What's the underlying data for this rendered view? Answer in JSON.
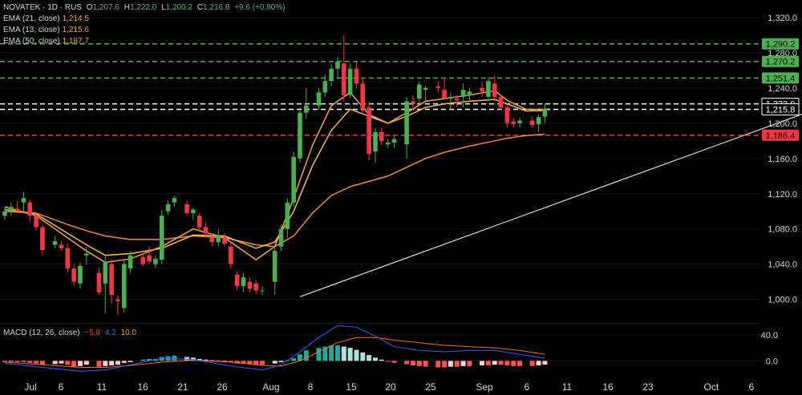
{
  "header": {
    "symbol": "NOVATEK · 1D · RUS",
    "o_label": "O",
    "o_value": "1,207.6",
    "h_label": "H",
    "h_value": "1,222.0",
    "l_label": "L",
    "l_value": "1,200.2",
    "c_label": "C",
    "c_value": "1,216.8",
    "change": "+9.6 (+0.80%)"
  },
  "indicators": [
    {
      "label": "EMA (21, close)",
      "value": "1,214.5",
      "color": "#f7b955"
    },
    {
      "label": "EMA (13, close)",
      "value": "1,215.6",
      "color": "#f5a04a"
    },
    {
      "label": "EMA (50, close)",
      "value": "1,187.7",
      "color": "#f08a3c"
    }
  ],
  "macd": {
    "label": "MACD (12, 26, close)",
    "hist": "−5.8",
    "macd": "4.2",
    "signal": "10.0"
  },
  "colors": {
    "up": "#4caf50",
    "down": "#f23645",
    "ema21": "#f7b955",
    "ema13": "#f5a04a",
    "ema50": "#f08a3c",
    "macd_line": "#2962ff",
    "signal_line": "#ff6d00",
    "trend": "#ffffff"
  },
  "chart_data": {
    "type": "candlestick",
    "y_axis_ticks": [
      "1,000.0",
      "1,040.0",
      "1,080.0",
      "1,120.0",
      "1,160.0",
      "1,200.0",
      "1,240.0",
      "1,280.0",
      "1,320.0"
    ],
    "ylim": [
      976,
      1340
    ],
    "x_axis_ticks": [
      "Jul",
      "6",
      "11",
      "16",
      "21",
      "26",
      "Aug",
      "8",
      "15",
      "20",
      "25",
      "Sep",
      "6",
      "11",
      "16",
      "23",
      "Oct",
      "6"
    ],
    "horizontal_levels": [
      {
        "value": 1290.2,
        "label": "1,290.2",
        "style": "dashed",
        "color": "#4caf50"
      },
      {
        "value": 1270.2,
        "label": "1,270.2",
        "style": "dashed",
        "color": "#4caf50"
      },
      {
        "value": 1251.4,
        "label": "1,251.4",
        "style": "dashed",
        "color": "#4caf50"
      },
      {
        "value": 1222.0,
        "label": "1,222.0",
        "style": "dashed",
        "color": "#ffffff"
      },
      {
        "value": 1215.8,
        "label": "1,215.8",
        "style": "dashed",
        "color": "#ffffff"
      },
      {
        "value": 1186.4,
        "label": "1,186.4",
        "style": "dashed",
        "color": "#f23645"
      }
    ],
    "trendline": {
      "from": {
        "x": 47,
        "y": 1003
      },
      "to": {
        "x": 150,
        "y": 1270
      }
    },
    "candles": [
      {
        "x": 0,
        "o": 1095,
        "h": 1105,
        "l": 1090,
        "c": 1100
      },
      {
        "x": 1,
        "o": 1100,
        "h": 1110,
        "l": 1095,
        "c": 1105
      },
      {
        "x": 2,
        "o": 1103,
        "h": 1112,
        "l": 1098,
        "c": 1100
      },
      {
        "x": 3,
        "o": 1110,
        "h": 1122,
        "l": 1100,
        "c": 1115
      },
      {
        "x": 4,
        "o": 1110,
        "h": 1113,
        "l": 1088,
        "c": 1095
      },
      {
        "x": 5,
        "o": 1095,
        "h": 1100,
        "l": 1078,
        "c": 1082
      },
      {
        "x": 6,
        "o": 1082,
        "h": 1085,
        "l": 1050,
        "c": 1056
      },
      {
        "x": 8,
        "o": 1062,
        "h": 1072,
        "l": 1058,
        "c": 1066
      },
      {
        "x": 9,
        "o": 1062,
        "h": 1066,
        "l": 1055,
        "c": 1058
      },
      {
        "x": 10,
        "o": 1058,
        "h": 1063,
        "l": 1030,
        "c": 1035
      },
      {
        "x": 11,
        "o": 1035,
        "h": 1040,
        "l": 1015,
        "c": 1020
      },
      {
        "x": 12,
        "o": 1018,
        "h": 1042,
        "l": 1012,
        "c": 1038
      },
      {
        "x": 13,
        "o": 1050,
        "h": 1060,
        "l": 1040,
        "c": 1052
      },
      {
        "x": 15,
        "o": 1030,
        "h": 1036,
        "l": 1005,
        "c": 1008
      },
      {
        "x": 16,
        "o": 1018,
        "h": 1050,
        "l": 984,
        "c": 1042
      },
      {
        "x": 17,
        "o": 1040,
        "h": 1046,
        "l": 995,
        "c": 1005
      },
      {
        "x": 18,
        "o": 1000,
        "h": 1005,
        "l": 982,
        "c": 998
      },
      {
        "x": 19,
        "o": 990,
        "h": 1045,
        "l": 985,
        "c": 1040
      },
      {
        "x": 20,
        "o": 1035,
        "h": 1055,
        "l": 1030,
        "c": 1050
      },
      {
        "x": 22,
        "o": 1048,
        "h": 1052,
        "l": 1038,
        "c": 1040
      },
      {
        "x": 23,
        "o": 1050,
        "h": 1060,
        "l": 1040,
        "c": 1043
      },
      {
        "x": 24,
        "o": 1040,
        "h": 1050,
        "l": 1035,
        "c": 1046
      },
      {
        "x": 25,
        "o": 1045,
        "h": 1102,
        "l": 1040,
        "c": 1095
      },
      {
        "x": 26,
        "o": 1100,
        "h": 1112,
        "l": 1096,
        "c": 1108
      },
      {
        "x": 27,
        "o": 1110,
        "h": 1117,
        "l": 1105,
        "c": 1115
      },
      {
        "x": 29,
        "o": 1108,
        "h": 1112,
        "l": 1095,
        "c": 1098
      },
      {
        "x": 30,
        "o": 1098,
        "h": 1104,
        "l": 1090,
        "c": 1102
      },
      {
        "x": 31,
        "o": 1095,
        "h": 1098,
        "l": 1078,
        "c": 1082
      },
      {
        "x": 32,
        "o": 1082,
        "h": 1088,
        "l": 1070,
        "c": 1075
      },
      {
        "x": 33,
        "o": 1070,
        "h": 1075,
        "l": 1060,
        "c": 1065
      },
      {
        "x": 34,
        "o": 1065,
        "h": 1080,
        "l": 1060,
        "c": 1072
      },
      {
        "x": 35,
        "o": 1070,
        "h": 1075,
        "l": 1060,
        "c": 1063
      },
      {
        "x": 36,
        "o": 1060,
        "h": 1065,
        "l": 1035,
        "c": 1040
      },
      {
        "x": 37,
        "o": 1028,
        "h": 1032,
        "l": 1010,
        "c": 1015
      },
      {
        "x": 38,
        "o": 1015,
        "h": 1030,
        "l": 1008,
        "c": 1025
      },
      {
        "x": 39,
        "o": 1020,
        "h": 1025,
        "l": 1008,
        "c": 1012
      },
      {
        "x": 40,
        "o": 1018,
        "h": 1022,
        "l": 1006,
        "c": 1010
      },
      {
        "x": 41,
        "o": 1010,
        "h": 1015,
        "l": 1005,
        "c": 1010
      },
      {
        "x": 43,
        "o": 1020,
        "h": 1060,
        "l": 1005,
        "c": 1055
      },
      {
        "x": 44,
        "o": 1060,
        "h": 1085,
        "l": 1055,
        "c": 1080
      },
      {
        "x": 45,
        "o": 1080,
        "h": 1115,
        "l": 1070,
        "c": 1110
      },
      {
        "x": 46,
        "o": 1110,
        "h": 1168,
        "l": 1105,
        "c": 1162
      },
      {
        "x": 47,
        "o": 1160,
        "h": 1218,
        "l": 1155,
        "c": 1212
      },
      {
        "x": 48,
        "o": 1212,
        "h": 1240,
        "l": 1205,
        "c": 1220
      },
      {
        "x": 50,
        "o": 1220,
        "h": 1240,
        "l": 1215,
        "c": 1235
      },
      {
        "x": 51,
        "o": 1235,
        "h": 1255,
        "l": 1230,
        "c": 1248
      },
      {
        "x": 52,
        "o": 1248,
        "h": 1268,
        "l": 1242,
        "c": 1262
      },
      {
        "x": 53,
        "o": 1262,
        "h": 1275,
        "l": 1250,
        "c": 1270
      },
      {
        "x": 54,
        "o": 1268,
        "h": 1300,
        "l": 1225,
        "c": 1232
      },
      {
        "x": 55,
        "o": 1232,
        "h": 1268,
        "l": 1228,
        "c": 1262
      },
      {
        "x": 56,
        "o": 1262,
        "h": 1270,
        "l": 1240,
        "c": 1245
      },
      {
        "x": 57,
        "o": 1245,
        "h": 1252,
        "l": 1210,
        "c": 1216
      },
      {
        "x": 58,
        "o": 1218,
        "h": 1225,
        "l": 1158,
        "c": 1165
      },
      {
        "x": 59,
        "o": 1168,
        "h": 1195,
        "l": 1155,
        "c": 1190
      },
      {
        "x": 60,
        "o": 1190,
        "h": 1195,
        "l": 1175,
        "c": 1180
      },
      {
        "x": 61,
        "o": 1176,
        "h": 1182,
        "l": 1172,
        "c": 1178
      },
      {
        "x": 62,
        "o": 1178,
        "h": 1186,
        "l": 1172,
        "c": 1182
      },
      {
        "x": 64,
        "o": 1176,
        "h": 1230,
        "l": 1160,
        "c": 1225
      },
      {
        "x": 65,
        "o": 1225,
        "h": 1232,
        "l": 1215,
        "c": 1222
      },
      {
        "x": 66,
        "o": 1228,
        "h": 1248,
        "l": 1220,
        "c": 1244
      },
      {
        "x": 67,
        "o": 1238,
        "h": 1242,
        "l": 1225,
        "c": 1240
      },
      {
        "x": 69,
        "o": 1242,
        "h": 1248,
        "l": 1234,
        "c": 1240
      },
      {
        "x": 70,
        "o": 1238,
        "h": 1252,
        "l": 1228,
        "c": 1228
      },
      {
        "x": 71,
        "o": 1228,
        "h": 1235,
        "l": 1215,
        "c": 1230
      },
      {
        "x": 72,
        "o": 1228,
        "h": 1232,
        "l": 1218,
        "c": 1226
      },
      {
        "x": 73,
        "o": 1230,
        "h": 1245,
        "l": 1218,
        "c": 1238
      },
      {
        "x": 74,
        "o": 1232,
        "h": 1240,
        "l": 1225,
        "c": 1236
      },
      {
        "x": 76,
        "o": 1240,
        "h": 1248,
        "l": 1230,
        "c": 1236
      },
      {
        "x": 77,
        "o": 1230,
        "h": 1252,
        "l": 1228,
        "c": 1248
      },
      {
        "x": 78,
        "o": 1245,
        "h": 1255,
        "l": 1225,
        "c": 1230
      },
      {
        "x": 79,
        "o": 1230,
        "h": 1233,
        "l": 1215,
        "c": 1218
      },
      {
        "x": 80,
        "o": 1218,
        "h": 1222,
        "l": 1195,
        "c": 1200
      },
      {
        "x": 81,
        "o": 1202,
        "h": 1206,
        "l": 1195,
        "c": 1199
      },
      {
        "x": 82,
        "o": 1200,
        "h": 1206,
        "l": 1195,
        "c": 1203
      },
      {
        "x": 84,
        "o": 1203,
        "h": 1208,
        "l": 1195,
        "c": 1198
      },
      {
        "x": 85,
        "o": 1199,
        "h": 1210,
        "l": 1190,
        "c": 1207
      },
      {
        "x": 86,
        "o": 1207.6,
        "h": 1222,
        "l": 1200.2,
        "c": 1216.8
      }
    ],
    "ema21": [
      [
        0,
        1102
      ],
      [
        5,
        1097
      ],
      [
        10,
        1075
      ],
      [
        13,
        1062
      ],
      [
        16,
        1050
      ],
      [
        20,
        1052
      ],
      [
        25,
        1058
      ],
      [
        30,
        1073
      ],
      [
        35,
        1072
      ],
      [
        40,
        1058
      ],
      [
        43,
        1065
      ],
      [
        46,
        1100
      ],
      [
        49,
        1152
      ],
      [
        52,
        1192
      ],
      [
        55,
        1216
      ],
      [
        58,
        1208
      ],
      [
        61,
        1200
      ],
      [
        64,
        1208
      ],
      [
        67,
        1218
      ],
      [
        70,
        1222
      ],
      [
        74,
        1225
      ],
      [
        78,
        1227
      ],
      [
        80,
        1222
      ],
      [
        83,
        1214
      ],
      [
        86,
        1214.5
      ]
    ],
    "ema13": [
      [
        0,
        1105
      ],
      [
        5,
        1095
      ],
      [
        10,
        1070
      ],
      [
        13,
        1055
      ],
      [
        16,
        1042
      ],
      [
        20,
        1046
      ],
      [
        25,
        1060
      ],
      [
        30,
        1080
      ],
      [
        35,
        1070
      ],
      [
        40,
        1045
      ],
      [
        43,
        1060
      ],
      [
        46,
        1115
      ],
      [
        49,
        1175
      ],
      [
        52,
        1220
      ],
      [
        55,
        1235
      ],
      [
        58,
        1210
      ],
      [
        61,
        1200
      ],
      [
        64,
        1212
      ],
      [
        67,
        1225
      ],
      [
        70,
        1228
      ],
      [
        74,
        1232
      ],
      [
        78,
        1237
      ],
      [
        80,
        1226
      ],
      [
        83,
        1216
      ],
      [
        86,
        1215.6
      ]
    ],
    "ema50": [
      [
        0,
        1100
      ],
      [
        5,
        1098
      ],
      [
        10,
        1085
      ],
      [
        13,
        1078
      ],
      [
        16,
        1072
      ],
      [
        20,
        1068
      ],
      [
        25,
        1068
      ],
      [
        30,
        1072
      ],
      [
        35,
        1070
      ],
      [
        40,
        1062
      ],
      [
        43,
        1060
      ],
      [
        46,
        1072
      ],
      [
        49,
        1098
      ],
      [
        52,
        1118
      ],
      [
        55,
        1128
      ],
      [
        58,
        1134
      ],
      [
        61,
        1140
      ],
      [
        64,
        1150
      ],
      [
        67,
        1160
      ],
      [
        70,
        1167
      ],
      [
        74,
        1174
      ],
      [
        78,
        1180
      ],
      [
        80,
        1183
      ],
      [
        83,
        1186
      ],
      [
        86,
        1187.7
      ]
    ],
    "macd_pane": {
      "y_ticks": [
        "40.0",
        "0.0"
      ],
      "ylim": [
        -18,
        56
      ],
      "histogram": [
        [
          0,
          -2
        ],
        [
          1,
          -1
        ],
        [
          2,
          -2
        ],
        [
          3,
          -1
        ],
        [
          4,
          -3
        ],
        [
          5,
          -4
        ],
        [
          6,
          -6
        ],
        [
          8,
          -5
        ],
        [
          9,
          -4
        ],
        [
          10,
          -6
        ],
        [
          11,
          -9
        ],
        [
          12,
          -8
        ],
        [
          13,
          -6
        ],
        [
          15,
          -9
        ],
        [
          16,
          -8
        ],
        [
          17,
          -7
        ],
        [
          18,
          -6
        ],
        [
          19,
          -3
        ],
        [
          20,
          -2
        ],
        [
          22,
          2
        ],
        [
          23,
          3
        ],
        [
          24,
          3
        ],
        [
          25,
          6
        ],
        [
          26,
          7
        ],
        [
          27,
          8
        ],
        [
          29,
          6
        ],
        [
          30,
          5
        ],
        [
          31,
          3
        ],
        [
          32,
          2
        ],
        [
          33,
          1
        ],
        [
          34,
          1
        ],
        [
          35,
          0
        ],
        [
          36,
          -2
        ],
        [
          37,
          -4
        ],
        [
          38,
          -4
        ],
        [
          39,
          -5
        ],
        [
          40,
          -6
        ],
        [
          41,
          -6
        ],
        [
          43,
          -4
        ],
        [
          44,
          -2
        ],
        [
          45,
          1
        ],
        [
          46,
          4
        ],
        [
          47,
          10
        ],
        [
          48,
          16
        ],
        [
          50,
          20
        ],
        [
          51,
          22
        ],
        [
          52,
          24
        ],
        [
          53,
          24
        ],
        [
          54,
          22
        ],
        [
          55,
          20
        ],
        [
          56,
          17
        ],
        [
          57,
          13
        ],
        [
          58,
          9
        ],
        [
          59,
          5
        ],
        [
          60,
          2
        ],
        [
          61,
          -1
        ],
        [
          62,
          -3
        ],
        [
          64,
          -5
        ],
        [
          65,
          -7
        ],
        [
          66,
          -8
        ],
        [
          67,
          -9
        ],
        [
          69,
          -10
        ],
        [
          70,
          -10
        ],
        [
          71,
          -9
        ],
        [
          72,
          -9
        ],
        [
          73,
          -8
        ],
        [
          74,
          -8
        ],
        [
          76,
          -7
        ],
        [
          77,
          -7
        ],
        [
          78,
          -6
        ],
        [
          79,
          -6
        ],
        [
          80,
          -7
        ],
        [
          81,
          -8
        ],
        [
          82,
          -8
        ],
        [
          84,
          -8
        ],
        [
          85,
          -7
        ],
        [
          86,
          -5.8
        ]
      ],
      "macd_line": [
        [
          0,
          -4
        ],
        [
          6,
          -10
        ],
        [
          12,
          -16
        ],
        [
          16,
          -14
        ],
        [
          20,
          -6
        ],
        [
          25,
          4
        ],
        [
          30,
          2
        ],
        [
          36,
          -8
        ],
        [
          41,
          -14
        ],
        [
          44,
          -6
        ],
        [
          47,
          14
        ],
        [
          50,
          36
        ],
        [
          53,
          54
        ],
        [
          56,
          52
        ],
        [
          59,
          38
        ],
        [
          62,
          22
        ],
        [
          66,
          16
        ],
        [
          70,
          14
        ],
        [
          74,
          16
        ],
        [
          78,
          16
        ],
        [
          82,
          10
        ],
        [
          86,
          4.2
        ]
      ],
      "signal_line": [
        [
          0,
          -2
        ],
        [
          6,
          -6
        ],
        [
          12,
          -10
        ],
        [
          16,
          -10
        ],
        [
          20,
          -7
        ],
        [
          25,
          -2
        ],
        [
          30,
          1
        ],
        [
          36,
          -2
        ],
        [
          41,
          -7
        ],
        [
          44,
          -8
        ],
        [
          47,
          0
        ],
        [
          50,
          14
        ],
        [
          53,
          28
        ],
        [
          56,
          36
        ],
        [
          59,
          36
        ],
        [
          62,
          32
        ],
        [
          66,
          28
        ],
        [
          70,
          24
        ],
        [
          74,
          22
        ],
        [
          78,
          20
        ],
        [
          82,
          16
        ],
        [
          86,
          10
        ]
      ]
    }
  }
}
